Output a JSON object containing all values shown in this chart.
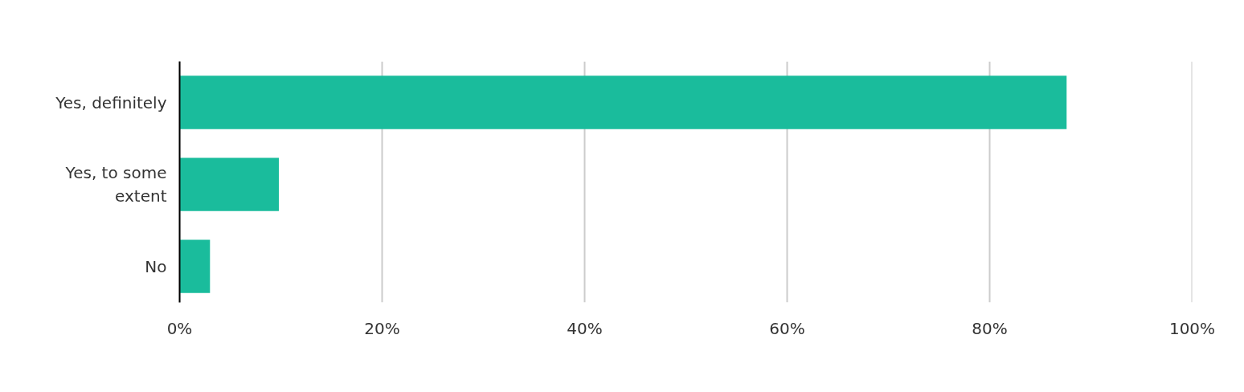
{
  "chart_data": {
    "type": "bar",
    "orientation": "horizontal",
    "categories": [
      "Yes, definitely",
      "Yes, to some extent",
      "No"
    ],
    "values": [
      87.6,
      9.8,
      3.0
    ],
    "color": "#1abc9c",
    "xlim": [
      0,
      100
    ],
    "xticks": [
      {
        "value": 0,
        "label": "0%"
      },
      {
        "value": 20,
        "label": "20%"
      },
      {
        "value": 40,
        "label": "40%"
      },
      {
        "value": 60,
        "label": "60%"
      },
      {
        "value": 80,
        "label": "80%"
      },
      {
        "value": 100,
        "label": "100%"
      }
    ],
    "grid": "x"
  }
}
